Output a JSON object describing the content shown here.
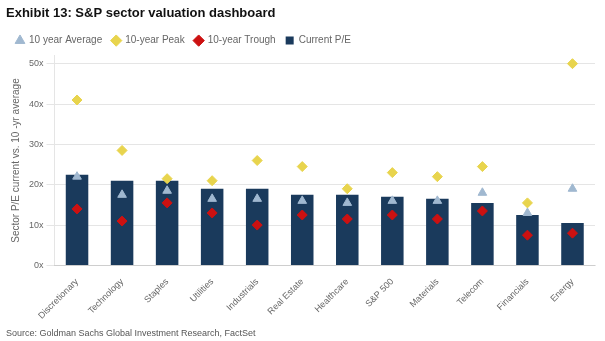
{
  "chart_data": {
    "type": "bar",
    "title": "Exhibit 13: S&P sector valuation dashboard",
    "y_label": "Sector P/E current vs. 10 -yr average",
    "source": "Source: Goldman Sachs Global Investment Research, FactSet",
    "categories": [
      "Discretionary",
      "Technology",
      "Staples",
      "Utilities",
      "Industrials",
      "Real Estate",
      "Healthcare",
      "S&P 500",
      "Materials",
      "Telecom",
      "Financials",
      "Energy"
    ],
    "series": [
      {
        "name": "Current P/E",
        "type": "bar",
        "color": "#1a3a5c",
        "values": [
          22.5,
          21.0,
          21.0,
          19.0,
          19.0,
          17.5,
          17.5,
          17.0,
          16.5,
          15.5,
          12.5,
          10.5
        ]
      },
      {
        "name": "10 year Average",
        "type": "scatter",
        "marker": "triangle",
        "color": "#a0b8d0",
        "values": [
          22.0,
          17.5,
          18.5,
          16.5,
          16.5,
          16.0,
          15.5,
          16.0,
          16.0,
          18.0,
          13.0,
          19.0
        ]
      },
      {
        "name": "10-year Peak",
        "type": "scatter",
        "marker": "diamond",
        "color": "#e8d44d",
        "values": [
          41.0,
          28.5,
          21.5,
          21.0,
          26.0,
          24.5,
          19.0,
          23.0,
          22.0,
          24.5,
          15.5,
          50.0
        ]
      },
      {
        "name": "10-year Trough",
        "type": "scatter",
        "marker": "diamond",
        "color": "#cc1111",
        "values": [
          14.0,
          11.0,
          15.5,
          13.0,
          10.0,
          12.5,
          11.5,
          12.5,
          11.5,
          13.5,
          7.5,
          8.0
        ]
      }
    ],
    "ylim": [
      0,
      52
    ],
    "yticks": [
      {
        "value": 0,
        "label": "0x"
      },
      {
        "value": 10,
        "label": "10x"
      },
      {
        "value": 20,
        "label": "20x"
      },
      {
        "value": 30,
        "label": "30x"
      },
      {
        "value": 40,
        "label": "40x"
      },
      {
        "value": 50,
        "label": "50x"
      }
    ],
    "grid": true,
    "legend": "upper left"
  }
}
